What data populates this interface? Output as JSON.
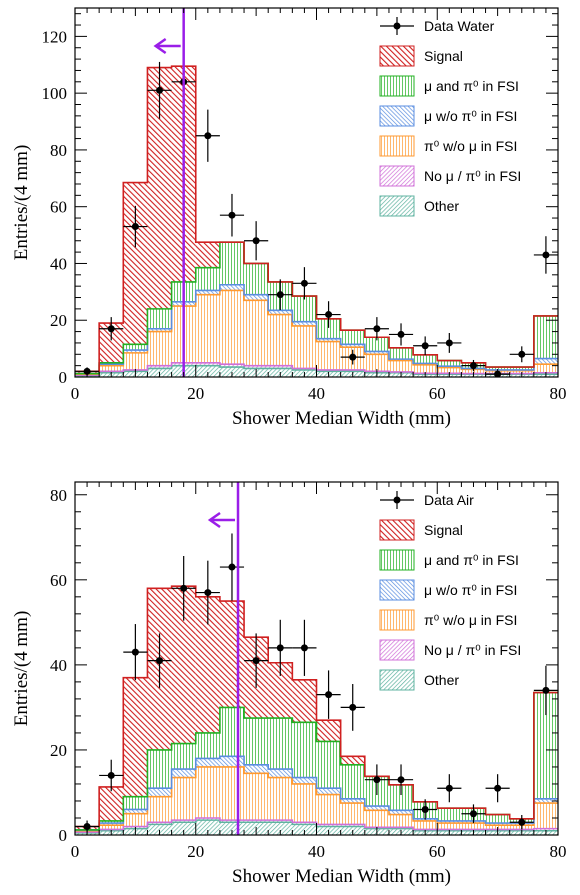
{
  "chart_data": [
    {
      "type": "bar",
      "stacked": true,
      "style": "step-histogram",
      "xlabel": "Shower Median Width (mm)",
      "ylabel": "Entries/(4 mm)",
      "xlim": [
        0,
        80
      ],
      "ylim": [
        0,
        130
      ],
      "xticks": [
        0,
        20,
        40,
        60,
        80
      ],
      "yticks": [
        0,
        20,
        40,
        60,
        80,
        100,
        120
      ],
      "grid": false,
      "legend_position": "top-right",
      "bin_edges": [
        0,
        4,
        8,
        12,
        16,
        20,
        24,
        28,
        32,
        36,
        40,
        44,
        48,
        52,
        56,
        60,
        64,
        68,
        72,
        76,
        80
      ],
      "cut_line": {
        "x": 18,
        "arrow_direction": "left",
        "color": "#9a1ee8"
      },
      "series": [
        {
          "name": "Other",
          "color": "#5fb3a0",
          "values": [
            0.5,
            1.5,
            2,
            3,
            4,
            4,
            3.5,
            3,
            3,
            2.5,
            2,
            2,
            1.5,
            1.5,
            1,
            1,
            1,
            1,
            1,
            1
          ]
        },
        {
          "name": "No μ / π⁰ in FSI",
          "color": "#d070d8",
          "values": [
            0.2,
            0.5,
            0.5,
            1,
            1,
            1,
            1,
            1,
            1,
            0.5,
            0.5,
            0.5,
            0.5,
            0.3,
            0.3,
            0.3,
            0.2,
            0.2,
            0.2,
            0.5
          ]
        },
        {
          "name": "π⁰ w/o μ in FSI",
          "color": "#ff9a30",
          "values": [
            0.3,
            2,
            6,
            12,
            20,
            24,
            26,
            23,
            18,
            15,
            10,
            8,
            6,
            4,
            3,
            2,
            1.5,
            1,
            1,
            3
          ]
        },
        {
          "name": "μ w/o π⁰ in FSI",
          "color": "#5a8ee0",
          "values": [
            0.2,
            0.5,
            1,
            1,
            1.5,
            1.5,
            2,
            2,
            1.5,
            1.5,
            1,
            1,
            1,
            0.5,
            0.5,
            0.5,
            0.3,
            0.3,
            0.3,
            2
          ]
        },
        {
          "name": "μ and π⁰ in FSI",
          "color": "#22b022",
          "values": [
            0,
            0.5,
            2,
            7,
            7,
            8,
            15,
            11,
            10,
            9,
            7,
            5,
            5,
            4,
            3,
            2,
            2,
            1,
            1,
            15
          ]
        },
        {
          "name": "Signal",
          "color": "#d02020",
          "values": [
            0.8,
            14,
            57,
            85,
            76,
            9,
            0,
            0,
            0,
            0,
            0,
            0,
            0,
            0,
            0,
            0,
            0,
            0,
            0,
            0
          ]
        }
      ],
      "data_series": {
        "name": "Data Water",
        "x": [
          2,
          6,
          10,
          14,
          18,
          22,
          26,
          30,
          34,
          38,
          42,
          46,
          50,
          54,
          58,
          62,
          66,
          70,
          74,
          78
        ],
        "y": [
          2,
          17,
          53,
          101,
          104,
          85,
          57,
          48,
          29,
          33,
          22,
          7,
          17,
          15,
          11,
          12,
          4,
          1,
          8,
          43
        ],
        "yerr": [
          1.4,
          4.1,
          7.3,
          10,
          10.2,
          9.2,
          7.5,
          6.9,
          5.4,
          5.7,
          4.7,
          2.6,
          4.1,
          3.9,
          3.3,
          3.5,
          2,
          1,
          2.8,
          6.6
        ]
      },
      "legend_entries": [
        "Data Water",
        "Signal",
        "μ and π⁰ in FSI",
        "μ w/o π⁰ in FSI",
        "π⁰ w/o μ in FSI",
        "No μ / π⁰ in FSI",
        "Other"
      ]
    },
    {
      "type": "bar",
      "stacked": true,
      "style": "step-histogram",
      "xlabel": "Shower Median Width (mm)",
      "ylabel": "Entries/(4 mm)",
      "xlim": [
        0,
        80
      ],
      "ylim": [
        0,
        83
      ],
      "xticks": [
        0,
        20,
        40,
        60,
        80
      ],
      "yticks": [
        0,
        20,
        40,
        60,
        80
      ],
      "grid": false,
      "legend_position": "top-right",
      "bin_edges": [
        0,
        4,
        8,
        12,
        16,
        20,
        24,
        28,
        32,
        36,
        40,
        44,
        48,
        52,
        56,
        60,
        64,
        68,
        72,
        76,
        80
      ],
      "cut_line": {
        "x": 27,
        "arrow_direction": "left",
        "color": "#9a1ee8"
      },
      "series": [
        {
          "name": "Other",
          "color": "#5fb3a0",
          "values": [
            0.5,
            1,
            1.5,
            2.5,
            3,
            3.5,
            3,
            3,
            3,
            2.5,
            2,
            2,
            1.5,
            1.5,
            1,
            1,
            1,
            1,
            1,
            1
          ]
        },
        {
          "name": "No μ / π⁰ in FSI",
          "color": "#d070d8",
          "values": [
            0.2,
            0.3,
            0.5,
            0.5,
            0.5,
            0.5,
            0.5,
            0.5,
            0.5,
            0.5,
            0.5,
            0.5,
            0.3,
            0.3,
            0.3,
            0.3,
            0.3,
            0.3,
            0.3,
            0.5
          ]
        },
        {
          "name": "π⁰ w/o μ in FSI",
          "color": "#ff9a30",
          "values": [
            0.3,
            1,
            3,
            6,
            10,
            12,
            12.5,
            11,
            10,
            9,
            7,
            5,
            4,
            3,
            2,
            1.5,
            1.5,
            1,
            1,
            6
          ]
        },
        {
          "name": "μ w/o π⁰ in FSI",
          "color": "#5a8ee0",
          "values": [
            0.2,
            0.5,
            1,
            2,
            2,
            2,
            2.5,
            2,
            2,
            1.5,
            1.5,
            1,
            1,
            1,
            0.5,
            0.5,
            0.5,
            0.5,
            0.5,
            1
          ]
        },
        {
          "name": "μ and π⁰ in FSI",
          "color": "#22b022",
          "values": [
            0,
            0.5,
            3,
            9,
            6,
            6,
            11.5,
            11,
            12,
            13,
            11,
            8,
            7,
            6,
            4,
            3,
            3,
            2,
            1,
            25
          ]
        },
        {
          "name": "Signal",
          "color": "#d02020",
          "values": [
            0.8,
            8,
            28,
            38,
            37,
            32,
            25,
            19,
            13,
            10,
            5,
            2,
            0,
            0,
            0,
            0,
            0,
            0,
            0,
            0
          ]
        }
      ],
      "data_series": {
        "name": "Data Air",
        "x": [
          2,
          6,
          10,
          14,
          18,
          22,
          26,
          30,
          34,
          38,
          42,
          46,
          50,
          54,
          58,
          62,
          66,
          70,
          74,
          78
        ],
        "y": [
          2,
          14,
          43,
          41,
          58,
          57,
          63,
          41,
          44,
          44,
          33,
          30,
          13,
          13,
          6,
          11,
          5,
          11,
          3,
          34
        ],
        "yerr": [
          1.4,
          3.7,
          6.6,
          6.4,
          7.6,
          7.5,
          7.9,
          6.4,
          6.6,
          6.6,
          5.7,
          5.5,
          3.6,
          3.6,
          2.4,
          3.3,
          2.2,
          3.3,
          1.7,
          5.8
        ]
      },
      "legend_entries": [
        "Data Air",
        "Signal",
        "μ and π⁰ in FSI",
        "μ w/o π⁰ in FSI",
        "π⁰ w/o μ in FSI",
        "No μ / π⁰ in FSI",
        "Other"
      ]
    }
  ]
}
